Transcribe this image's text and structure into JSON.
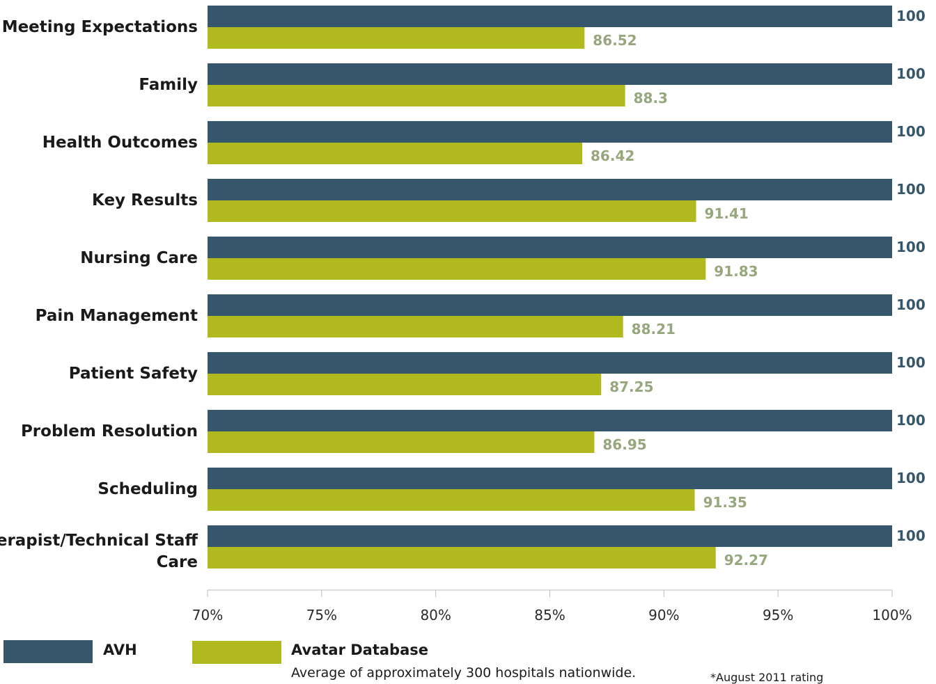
{
  "chart_data": {
    "type": "bar",
    "orientation": "horizontal",
    "categories": [
      "Meeting Expectations",
      "Family",
      "Health Outcomes",
      "Key Results",
      "Nursing Care",
      "Pain Management",
      "Patient Safety",
      "Problem Resolution",
      "Scheduling",
      "Therapist/Technical Staff Care"
    ],
    "series": [
      {
        "name": "AVH",
        "color": "#36566b",
        "label_color": "#36566b",
        "values": [
          100,
          100,
          100,
          100,
          100,
          100,
          100,
          100,
          100,
          100
        ],
        "labels": [
          "100",
          "100",
          "100",
          "100",
          "100",
          "100",
          "100",
          "100",
          "100",
          "100"
        ]
      },
      {
        "name": "Avatar Database",
        "color": "#b0ba1e",
        "label_color": "#97a77d",
        "values": [
          86.52,
          88.3,
          86.42,
          91.41,
          91.83,
          88.21,
          87.25,
          86.95,
          91.35,
          92.27
        ],
        "labels": [
          "86.52",
          "88.3",
          "86.42",
          "91.41",
          "91.83",
          "88.21",
          "87.25",
          "86.95",
          "91.35",
          "92.27"
        ]
      }
    ],
    "xlim": [
      70,
      100
    ],
    "xticks": [
      70,
      75,
      80,
      85,
      90,
      95,
      100
    ],
    "xtick_labels": [
      "70%",
      "75%",
      "80%",
      "85%",
      "90%",
      "95%",
      "100%"
    ],
    "legend_position": "bottom",
    "grid": false
  },
  "legend": {
    "avh_label": "AVH",
    "db_label": "Avatar Database",
    "db_note": "Average of approximately 300 hospitals nationwide.",
    "footnote": "*August 2011 rating"
  }
}
